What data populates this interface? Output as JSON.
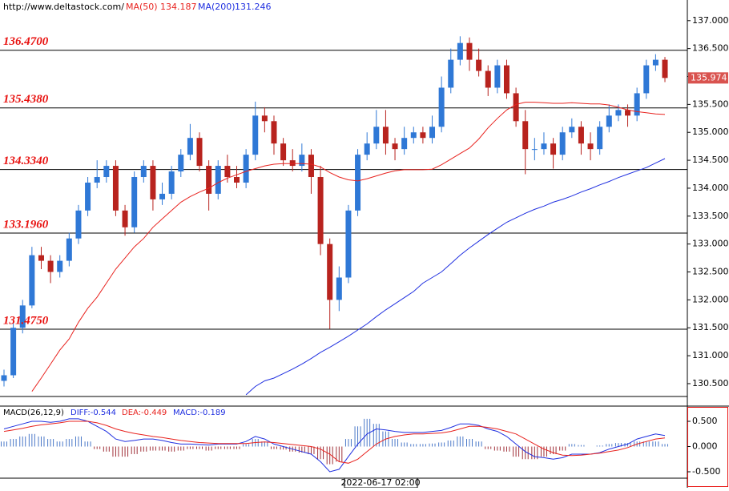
{
  "chart_data": [
    {
      "type": "candlestick",
      "source": "http://www.deltastock.com/",
      "up_color": "#2f78d6",
      "down_color": "#b8231e",
      "open": [
        130.55,
        130.65,
        131.5,
        131.9,
        132.8,
        132.7,
        132.5,
        132.7,
        133.1,
        133.6,
        134.1,
        134.2,
        134.4,
        133.6,
        133.3,
        134.2,
        134.4,
        133.8,
        133.9,
        134.3,
        134.6,
        134.9,
        134.4,
        133.9,
        134.4,
        134.2,
        134.1,
        134.6,
        135.3,
        135.2,
        134.8,
        134.5,
        134.4,
        134.6,
        134.2,
        133.0,
        132.0,
        132.4,
        133.6,
        134.6,
        134.8,
        135.1,
        134.8,
        134.7,
        134.9,
        135.0,
        134.9,
        135.1,
        135.8,
        136.3,
        136.6,
        136.3,
        136.1,
        135.8,
        136.2,
        135.7,
        135.2,
        134.7,
        134.7,
        134.8,
        134.6,
        135.0,
        135.1,
        134.8,
        134.7,
        135.1,
        135.3,
        135.4,
        135.3,
        135.7,
        136.2,
        136.3
      ],
      "high": [
        130.75,
        131.6,
        132.0,
        132.95,
        132.95,
        132.8,
        132.8,
        133.2,
        133.7,
        134.2,
        134.5,
        134.5,
        134.5,
        133.7,
        134.3,
        134.5,
        134.5,
        134.1,
        134.4,
        134.7,
        135.15,
        135.0,
        134.5,
        134.5,
        134.6,
        134.4,
        134.7,
        135.55,
        135.45,
        135.3,
        134.9,
        134.7,
        134.8,
        134.7,
        134.4,
        133.1,
        132.6,
        133.7,
        134.7,
        135.0,
        135.4,
        135.4,
        134.9,
        135.1,
        135.1,
        135.1,
        135.3,
        136.0,
        136.5,
        136.72,
        136.7,
        136.5,
        136.2,
        136.3,
        136.3,
        135.8,
        135.4,
        134.9,
        135.0,
        134.9,
        135.1,
        135.25,
        135.2,
        135.0,
        135.2,
        135.5,
        135.5,
        135.5,
        135.8,
        136.3,
        136.4,
        136.35
      ],
      "low": [
        130.45,
        130.6,
        131.4,
        131.85,
        132.55,
        132.3,
        132.4,
        132.6,
        133.0,
        133.5,
        134.0,
        134.1,
        133.5,
        133.15,
        133.2,
        134.1,
        133.6,
        133.7,
        133.8,
        134.2,
        134.5,
        134.3,
        133.6,
        133.8,
        134.1,
        134.0,
        134.0,
        134.5,
        135.0,
        134.6,
        134.4,
        134.3,
        134.3,
        133.9,
        132.8,
        131.48,
        131.8,
        132.3,
        133.5,
        134.5,
        134.7,
        134.6,
        134.5,
        134.6,
        134.8,
        134.8,
        134.8,
        135.0,
        135.7,
        136.2,
        136.1,
        136.0,
        135.65,
        135.7,
        135.6,
        135.1,
        134.25,
        134.5,
        134.6,
        134.35,
        134.5,
        134.9,
        134.6,
        134.5,
        134.6,
        135.0,
        135.2,
        135.1,
        135.2,
        135.6,
        136.1,
        135.9
      ],
      "close": [
        130.65,
        131.5,
        131.9,
        132.8,
        132.7,
        132.5,
        132.7,
        133.1,
        133.6,
        134.1,
        134.2,
        134.4,
        133.6,
        133.3,
        134.2,
        134.4,
        133.8,
        133.9,
        134.3,
        134.6,
        134.9,
        134.4,
        133.9,
        134.4,
        134.2,
        134.1,
        134.6,
        135.3,
        135.2,
        134.8,
        134.5,
        134.4,
        134.6,
        134.2,
        133.0,
        132.0,
        132.4,
        133.6,
        134.6,
        134.8,
        135.1,
        134.8,
        134.7,
        134.9,
        135.0,
        134.9,
        135.1,
        135.8,
        136.3,
        136.6,
        136.3,
        136.1,
        135.8,
        136.2,
        135.7,
        135.2,
        134.7,
        134.7,
        134.8,
        134.6,
        135.0,
        135.1,
        134.8,
        134.7,
        135.1,
        135.3,
        135.4,
        135.3,
        135.7,
        136.2,
        136.3,
        135.974
      ],
      "series": [
        {
          "name": "MA(50)",
          "legend_value": 134.187,
          "color": "#e8231f",
          "values": [
            null,
            null,
            null,
            130.36,
            130.6,
            130.85,
            131.1,
            131.3,
            131.6,
            131.85,
            132.05,
            132.3,
            132.55,
            132.75,
            132.95,
            133.1,
            133.3,
            133.45,
            133.6,
            133.75,
            133.85,
            133.93,
            134.0,
            134.1,
            134.18,
            134.24,
            134.3,
            134.35,
            134.4,
            134.43,
            134.44,
            134.44,
            134.44,
            134.43,
            134.38,
            134.28,
            134.2,
            134.15,
            134.13,
            134.17,
            134.22,
            134.27,
            134.31,
            134.33,
            134.33,
            134.33,
            134.34,
            134.42,
            134.52,
            134.62,
            134.72,
            134.88,
            135.08,
            135.25,
            135.4,
            135.5,
            135.54,
            135.54,
            135.53,
            135.52,
            135.52,
            135.53,
            135.52,
            135.51,
            135.51,
            135.49,
            135.45,
            135.4,
            135.37,
            135.35,
            135.33,
            135.32
          ]
        },
        {
          "name": "MA(200)",
          "legend_value": 131.246,
          "color": "#1f2fe0",
          "values": [
            null,
            null,
            null,
            null,
            null,
            null,
            null,
            null,
            null,
            null,
            null,
            null,
            null,
            null,
            null,
            null,
            null,
            null,
            null,
            null,
            null,
            null,
            null,
            null,
            null,
            null,
            130.3,
            130.45,
            130.55,
            130.6,
            130.68,
            130.76,
            130.85,
            130.95,
            131.06,
            131.15,
            131.25,
            131.35,
            131.46,
            131.57,
            131.7,
            131.82,
            131.93,
            132.04,
            132.15,
            132.3,
            132.4,
            132.5,
            132.65,
            132.8,
            132.93,
            133.05,
            133.17,
            133.28,
            133.39,
            133.47,
            133.55,
            133.62,
            133.68,
            133.75,
            133.8,
            133.86,
            133.93,
            133.99,
            134.06,
            134.12,
            134.19,
            134.25,
            134.31,
            134.37,
            134.45,
            134.53
          ]
        }
      ],
      "levels": [
        {
          "value": 136.47,
          "label": "136.4700"
        },
        {
          "value": 135.438,
          "label": "135.4380"
        },
        {
          "value": 134.334,
          "label": "134.3340"
        },
        {
          "value": 133.196,
          "label": "133.1960"
        },
        {
          "value": 131.475,
          "label": "131.4750"
        }
      ],
      "last_price": {
        "value": 135.974,
        "label": "135.974",
        "color": "#d9534f"
      },
      "ylim": [
        130.27,
        137.37
      ],
      "yticks": [
        {
          "value": 130.5,
          "label": "130.500"
        },
        {
          "value": 131,
          "label": "131.000"
        },
        {
          "value": 131.5,
          "label": "131.500"
        },
        {
          "value": 132,
          "label": "132.000"
        },
        {
          "value": 132.5,
          "label": "132.500"
        },
        {
          "value": 133,
          "label": "133.000"
        },
        {
          "value": 133.5,
          "label": "133.500"
        },
        {
          "value": 134,
          "label": "134.000"
        },
        {
          "value": 134.5,
          "label": "134.500"
        },
        {
          "value": 135,
          "label": "135.000"
        },
        {
          "value": 135.5,
          "label": "135.500"
        },
        {
          "value": 136,
          "label": "136.000"
        },
        {
          "value": 136.5,
          "label": "136.500"
        },
        {
          "value": 137,
          "label": "137.000"
        }
      ]
    },
    {
      "type": "macd",
      "title": "MACD(26,12,9)",
      "x_label": "2022-06-17 02:00",
      "series": [
        {
          "label": "DIFF:-0.544",
          "color": "#1f2fe0",
          "values": [
            0.35,
            0.4,
            0.45,
            0.5,
            0.5,
            0.48,
            0.5,
            0.55,
            0.55,
            0.5,
            0.4,
            0.3,
            0.15,
            0.1,
            0.12,
            0.15,
            0.15,
            0.12,
            0.08,
            0.05,
            0.05,
            0.04,
            0.03,
            0.05,
            0.05,
            0.05,
            0.1,
            0.2,
            0.15,
            0.05,
            0,
            -0.05,
            -0.1,
            -0.15,
            -0.3,
            -0.5,
            -0.45,
            -0.2,
            0.05,
            0.25,
            0.35,
            0.33,
            0.3,
            0.28,
            0.28,
            0.28,
            0.3,
            0.32,
            0.38,
            0.45,
            0.45,
            0.42,
            0.35,
            0.3,
            0.2,
            0.05,
            -0.1,
            -0.2,
            -0.22,
            -0.25,
            -0.22,
            -0.15,
            -0.15,
            -0.15,
            -0.12,
            -0.05,
            0,
            0.05,
            0.15,
            0.2,
            0.25,
            0.22
          ]
        },
        {
          "label": "DEA:-0.449",
          "color": "#e8231f",
          "values": [
            0.3,
            0.33,
            0.36,
            0.4,
            0.43,
            0.45,
            0.47,
            0.5,
            0.5,
            0.5,
            0.47,
            0.42,
            0.35,
            0.3,
            0.26,
            0.23,
            0.2,
            0.18,
            0.15,
            0.12,
            0.1,
            0.08,
            0.07,
            0.06,
            0.06,
            0.06,
            0.06,
            0.08,
            0.09,
            0.08,
            0.06,
            0.04,
            0.02,
            0,
            -0.05,
            -0.15,
            -0.3,
            -0.33,
            -0.25,
            -0.1,
            0.05,
            0.15,
            0.2,
            0.23,
            0.25,
            0.25,
            0.26,
            0.27,
            0.3,
            0.35,
            0.4,
            0.4,
            0.38,
            0.35,
            0.3,
            0.25,
            0.15,
            0.05,
            -0.05,
            -0.12,
            -0.17,
            -0.18,
            -0.17,
            -0.15,
            -0.13,
            -0.1,
            -0.07,
            -0.02,
            0.05,
            0.1,
            0.15,
            0.17
          ]
        }
      ],
      "histogram": {
        "label": "MACD:-0.189",
        "up_color": "#4a78c8",
        "down_color": "#a0323a",
        "values": [
          0.1,
          0.15,
          0.2,
          0.25,
          0.2,
          0.15,
          0.1,
          0.15,
          0.2,
          0.1,
          -0.05,
          -0.1,
          -0.2,
          -0.2,
          -0.15,
          -0.1,
          -0.08,
          -0.08,
          -0.1,
          -0.08,
          -0.05,
          -0.05,
          -0.08,
          -0.05,
          -0.05,
          -0.05,
          0.05,
          0.15,
          0.1,
          -0.05,
          -0.06,
          -0.1,
          -0.12,
          -0.15,
          -0.25,
          -0.35,
          -0.3,
          0.15,
          0.4,
          0.55,
          0.45,
          0.3,
          0.15,
          0.08,
          0.05,
          0.05,
          0.06,
          0.08,
          0.12,
          0.2,
          0.15,
          0.1,
          -0.05,
          -0.08,
          -0.1,
          -0.2,
          -0.25,
          -0.25,
          -0.2,
          -0.15,
          -0.08,
          0.05,
          0.03,
          0,
          0.02,
          0.05,
          0.07,
          0.07,
          0.1,
          0.1,
          0.1,
          0.05
        ]
      },
      "ylim": [
        -0.627,
        0.786
      ],
      "yticks": [
        {
          "value": -0.5,
          "label": "-0.500"
        },
        {
          "value": 0,
          "label": "0.000"
        },
        {
          "value": 0.5,
          "label": "0.500"
        }
      ]
    }
  ]
}
